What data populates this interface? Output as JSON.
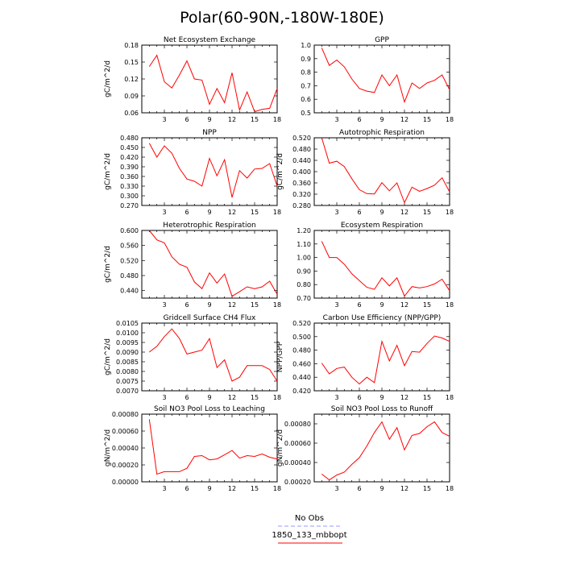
{
  "figure": {
    "title": "Polar(60-90N,-180W-180E)",
    "legend": [
      {
        "label": "No Obs",
        "color": "#9999ff",
        "dash": true
      },
      {
        "label": "1850_133_mbbopt",
        "color": "#ff0000",
        "dash": false
      }
    ]
  },
  "chart_data": [
    {
      "type": "line",
      "title": "Net Ecosystem Exchange",
      "ylabel": "gC/m^2/d",
      "x": [
        1,
        2,
        3,
        4,
        5,
        6,
        7,
        8,
        9,
        10,
        11,
        12,
        13,
        14,
        15,
        16,
        17,
        18
      ],
      "series": [
        {
          "name": "1850_133_mbbopt",
          "color": "#ff0000",
          "values": [
            0.142,
            0.162,
            0.115,
            0.104,
            0.127,
            0.152,
            0.12,
            0.118,
            0.075,
            0.103,
            0.078,
            0.131,
            0.065,
            0.097,
            0.062,
            0.066,
            0.068,
            0.103
          ]
        }
      ],
      "xlim": [
        0,
        18
      ],
      "ylim": [
        0.06,
        0.18
      ],
      "xticks": [
        3,
        6,
        9,
        12,
        15,
        18
      ],
      "yticks": [
        0.06,
        0.09,
        0.12,
        0.15,
        0.18
      ],
      "yticklabels": [
        "0.06",
        "0.09",
        "0.12",
        "0.15",
        "0.18"
      ]
    },
    {
      "type": "line",
      "title": "GPP",
      "ylabel": "",
      "x": [
        1,
        2,
        3,
        4,
        5,
        6,
        7,
        8,
        9,
        10,
        11,
        12,
        13,
        14,
        15,
        16,
        17,
        18
      ],
      "series": [
        {
          "name": "1850_133_mbbopt",
          "color": "#ff0000",
          "values": [
            0.98,
            0.85,
            0.89,
            0.84,
            0.75,
            0.68,
            0.66,
            0.65,
            0.78,
            0.7,
            0.78,
            0.58,
            0.72,
            0.68,
            0.72,
            0.74,
            0.78,
            0.67
          ]
        }
      ],
      "xlim": [
        0,
        18
      ],
      "ylim": [
        0.5,
        1.0
      ],
      "xticks": [
        3,
        6,
        9,
        12,
        15,
        18
      ],
      "yticks": [
        0.5,
        0.6,
        0.7,
        0.8,
        0.9,
        1.0
      ],
      "yticklabels": [
        "0.5",
        "0.6",
        "0.7",
        "0.8",
        "0.9",
        "1.0"
      ]
    },
    {
      "type": "line",
      "title": "NPP",
      "ylabel": "gC/m^2/d",
      "x": [
        1,
        2,
        3,
        4,
        5,
        6,
        7,
        8,
        9,
        10,
        11,
        12,
        13,
        14,
        15,
        16,
        17,
        18
      ],
      "series": [
        {
          "name": "1850_133_mbbopt",
          "color": "#ff0000",
          "values": [
            0.463,
            0.42,
            0.455,
            0.432,
            0.385,
            0.352,
            0.345,
            0.33,
            0.416,
            0.362,
            0.412,
            0.295,
            0.378,
            0.355,
            0.383,
            0.385,
            0.4,
            0.33
          ]
        }
      ],
      "xlim": [
        0,
        18
      ],
      "ylim": [
        0.27,
        0.48
      ],
      "xticks": [
        3,
        6,
        9,
        12,
        15,
        18
      ],
      "yticks": [
        0.27,
        0.3,
        0.33,
        0.36,
        0.39,
        0.42,
        0.45,
        0.48
      ],
      "yticklabels": [
        "0.270",
        "0.300",
        "0.330",
        "0.360",
        "0.390",
        "0.420",
        "0.450",
        "0.480"
      ]
    },
    {
      "type": "line",
      "title": "Autotrophic Respiration",
      "ylabel": "gC/m^2/d",
      "x": [
        1,
        2,
        3,
        4,
        5,
        6,
        7,
        8,
        9,
        10,
        11,
        12,
        13,
        14,
        15,
        16,
        17,
        18
      ],
      "series": [
        {
          "name": "1850_133_mbbopt",
          "color": "#ff0000",
          "values": [
            0.52,
            0.43,
            0.437,
            0.418,
            0.375,
            0.336,
            0.322,
            0.321,
            0.361,
            0.332,
            0.36,
            0.29,
            0.345,
            0.33,
            0.34,
            0.352,
            0.378,
            0.328
          ]
        }
      ],
      "xlim": [
        0,
        18
      ],
      "ylim": [
        0.28,
        0.52
      ],
      "xticks": [
        3,
        6,
        9,
        12,
        15,
        18
      ],
      "yticks": [
        0.28,
        0.32,
        0.36,
        0.4,
        0.44,
        0.48,
        0.52
      ],
      "yticklabels": [
        "0.280",
        "0.320",
        "0.360",
        "0.400",
        "0.440",
        "0.480",
        "0.520"
      ]
    },
    {
      "type": "line",
      "title": "Heterotrophic Respiration",
      "ylabel": "gC/m^2/d",
      "x": [
        1,
        2,
        3,
        4,
        5,
        6,
        7,
        8,
        9,
        10,
        11,
        12,
        13,
        14,
        15,
        16,
        17,
        18
      ],
      "series": [
        {
          "name": "1850_133_mbbopt",
          "color": "#ff0000",
          "values": [
            0.6,
            0.575,
            0.567,
            0.53,
            0.51,
            0.502,
            0.463,
            0.445,
            0.487,
            0.46,
            0.484,
            0.425,
            0.437,
            0.45,
            0.445,
            0.45,
            0.465,
            0.43
          ]
        }
      ],
      "xlim": [
        0,
        18
      ],
      "ylim": [
        0.42,
        0.6
      ],
      "xticks": [
        3,
        6,
        9,
        12,
        15,
        18
      ],
      "yticks": [
        0.44,
        0.48,
        0.52,
        0.56,
        0.6
      ],
      "yticklabels": [
        "0.440",
        "0.480",
        "0.520",
        "0.560",
        "0.600"
      ]
    },
    {
      "type": "line",
      "title": "Ecosystem Respiration",
      "ylabel": "",
      "x": [
        1,
        2,
        3,
        4,
        5,
        6,
        7,
        8,
        9,
        10,
        11,
        12,
        13,
        14,
        15,
        16,
        17,
        18
      ],
      "series": [
        {
          "name": "1850_133_mbbopt",
          "color": "#ff0000",
          "values": [
            1.12,
            1.0,
            1.0,
            0.95,
            0.88,
            0.83,
            0.78,
            0.765,
            0.85,
            0.79,
            0.85,
            0.715,
            0.785,
            0.775,
            0.785,
            0.805,
            0.84,
            0.755
          ]
        }
      ],
      "xlim": [
        0,
        18
      ],
      "ylim": [
        0.7,
        1.2
      ],
      "xticks": [
        3,
        6,
        9,
        12,
        15,
        18
      ],
      "yticks": [
        0.7,
        0.8,
        0.9,
        1.0,
        1.1,
        1.2
      ],
      "yticklabels": [
        "0.70",
        "0.80",
        "0.90",
        "1.00",
        "1.10",
        "1.20"
      ]
    },
    {
      "type": "line",
      "title": "Gridcell Surface CH4 Flux",
      "ylabel": "gC/m^2/d",
      "x": [
        1,
        2,
        3,
        4,
        5,
        6,
        7,
        8,
        9,
        10,
        11,
        12,
        13,
        14,
        15,
        16,
        17,
        18
      ],
      "series": [
        {
          "name": "1850_133_mbbopt",
          "color": "#ff0000",
          "values": [
            0.009,
            0.0093,
            0.0098,
            0.0102,
            0.0097,
            0.0089,
            0.009,
            0.0091,
            0.0097,
            0.0082,
            0.0086,
            0.0075,
            0.0077,
            0.0083,
            0.0083,
            0.0083,
            0.0081,
            0.0075
          ]
        }
      ],
      "xlim": [
        0,
        18
      ],
      "ylim": [
        0.007,
        0.0105
      ],
      "xticks": [
        3,
        6,
        9,
        12,
        15,
        18
      ],
      "yticks": [
        0.007,
        0.0075,
        0.008,
        0.0085,
        0.009,
        0.0095,
        0.01,
        0.0105
      ],
      "yticklabels": [
        "0.0070",
        "0.0075",
        "0.0080",
        "0.0085",
        "0.0090",
        "0.0095",
        "0.0100",
        "0.0105"
      ]
    },
    {
      "type": "line",
      "title": "Carbon Use Efficiency (NPP/GPP)",
      "ylabel": "NPP/GPP",
      "x": [
        1,
        2,
        3,
        4,
        5,
        6,
        7,
        8,
        9,
        10,
        11,
        12,
        13,
        14,
        15,
        16,
        17,
        18
      ],
      "series": [
        {
          "name": "1850_133_mbbopt",
          "color": "#ff0000",
          "values": [
            0.461,
            0.445,
            0.453,
            0.455,
            0.44,
            0.43,
            0.44,
            0.432,
            0.493,
            0.464,
            0.487,
            0.457,
            0.478,
            0.477,
            0.49,
            0.501,
            0.498,
            0.493
          ]
        }
      ],
      "xlim": [
        0,
        18
      ],
      "ylim": [
        0.42,
        0.52
      ],
      "xticks": [
        3,
        6,
        9,
        12,
        15,
        18
      ],
      "yticks": [
        0.42,
        0.44,
        0.46,
        0.48,
        0.5,
        0.52
      ],
      "yticklabels": [
        "0.420",
        "0.440",
        "0.460",
        "0.480",
        "0.500",
        "0.520"
      ]
    },
    {
      "type": "line",
      "title": "Soil NO3 Pool Loss to Leaching",
      "ylabel": "gN/m^2/d",
      "x": [
        1,
        2,
        3,
        4,
        5,
        6,
        7,
        8,
        9,
        10,
        11,
        12,
        13,
        14,
        15,
        16,
        17,
        18
      ],
      "series": [
        {
          "name": "1850_133_mbbopt",
          "color": "#ff0000",
          "values": [
            0.00074,
            9e-05,
            0.00012,
            0.00012,
            0.00012,
            0.00016,
            0.0003,
            0.00031,
            0.00026,
            0.00027,
            0.00032,
            0.00037,
            0.00028,
            0.00031,
            0.0003,
            0.00033,
            0.00029,
            0.00027
          ]
        }
      ],
      "xlim": [
        0,
        18
      ],
      "ylim": [
        0,
        0.0008
      ],
      "xticks": [
        3,
        6,
        9,
        12,
        15,
        18
      ],
      "yticks": [
        0,
        0.0002,
        0.0004,
        0.0006,
        0.0008
      ],
      "yticklabels": [
        "0.00000",
        "0.00020",
        "0.00040",
        "0.00060",
        "0.00080"
      ]
    },
    {
      "type": "line",
      "title": "Soil NO3 Pool Loss to Runoff",
      "ylabel": "gN/m^2/d",
      "x": [
        1,
        2,
        3,
        4,
        5,
        6,
        7,
        8,
        9,
        10,
        11,
        12,
        13,
        14,
        15,
        16,
        17,
        18
      ],
      "series": [
        {
          "name": "1850_133_mbbopt",
          "color": "#ff0000",
          "values": [
            0.00028,
            0.00022,
            0.00027,
            0.0003,
            0.00038,
            0.00045,
            0.00057,
            0.00071,
            0.00082,
            0.00064,
            0.00076,
            0.00053,
            0.00068,
            0.0007,
            0.00077,
            0.00082,
            0.00071,
            0.00067
          ]
        }
      ],
      "xlim": [
        0,
        18
      ],
      "ylim": [
        0.0002,
        0.0009
      ],
      "xticks": [
        3,
        6,
        9,
        12,
        15,
        18
      ],
      "yticks": [
        0.0002,
        0.0004,
        0.0006,
        0.0008
      ],
      "yticklabels": [
        "0.00020",
        "0.00040",
        "0.00060",
        "0.00080"
      ]
    }
  ]
}
